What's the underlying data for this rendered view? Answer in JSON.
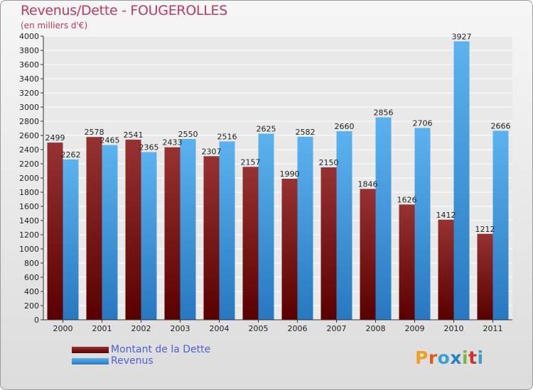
{
  "title": "Revenus/Dette - FOUGEROLLES",
  "subtitle": "(en milliers d'€)",
  "logo": {
    "text": "Proxiti",
    "colors": [
      "#f0a020",
      "#e05a20",
      "#3aa0d0",
      "#2a7fc0",
      "#7ab63a",
      "#d03030",
      "#3aa0d0"
    ]
  },
  "chart_data": {
    "type": "bar",
    "categories": [
      "2000",
      "2001",
      "2002",
      "2003",
      "2004",
      "2005",
      "2006",
      "2007",
      "2008",
      "2009",
      "2010",
      "2011"
    ],
    "series": [
      {
        "name": "Montant de la Dette",
        "color": "#8a2020",
        "values": [
          2499,
          2578,
          2541,
          2433,
          2307,
          2157,
          1990,
          2150,
          1846,
          1626,
          1412,
          1212
        ]
      },
      {
        "name": "Revenus",
        "color": "#4aa5e5",
        "values": [
          2262,
          2465,
          2365,
          2550,
          2516,
          2625,
          2582,
          2660,
          2856,
          2706,
          3927,
          2666
        ]
      }
    ],
    "ylim": [
      0,
      4000
    ],
    "ytick_step": 200,
    "grid": true,
    "legend_position": "bottom-left"
  }
}
